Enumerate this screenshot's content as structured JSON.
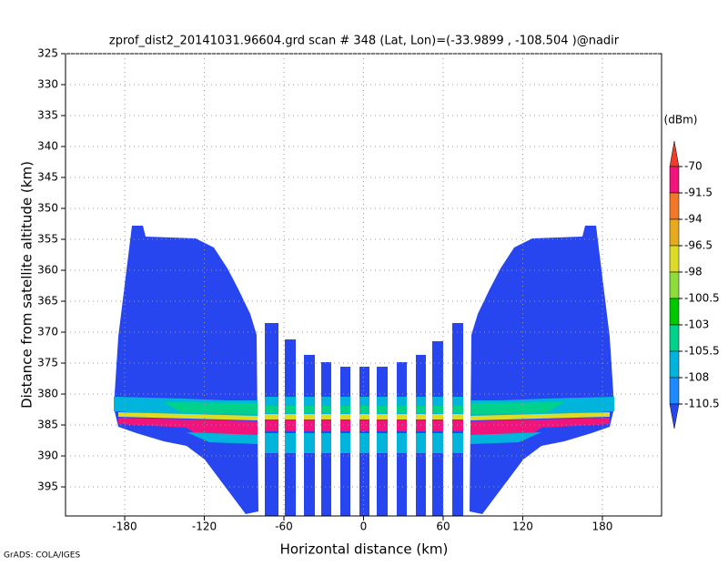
{
  "chart_data": {
    "type": "heatmap",
    "title": "zprof_dist2_20141031.96604.grd  scan # 348  (Lat, Lon)=(-33.9899 , -108.504 )@nadir",
    "x_label": "Horizontal distance (km)",
    "y_label": "Distance from satellite altitude (km)",
    "footer": "GrADS: COLA/IGES",
    "xlim": [
      -224.6,
      224.6
    ],
    "xticks": [
      -180,
      -120,
      -60,
      0,
      60,
      120,
      180
    ],
    "ylim": [
      325,
      399.7
    ],
    "yticks": [
      325,
      330,
      335,
      340,
      345,
      350,
      355,
      360,
      365,
      370,
      375,
      380,
      385,
      390,
      395
    ],
    "y_reversed": true,
    "grid": true,
    "colorbar": {
      "unit": "(dBm)",
      "levels": [
        -70,
        -91.5,
        -94,
        -96.5,
        -98,
        -100.5,
        -103,
        -105.5,
        -108,
        -110.5
      ],
      "colors": [
        "#f03c28",
        "#f0147c",
        "#f07828",
        "#e6aa1e",
        "#dcdc28",
        "#8cdc3c",
        "#00c800",
        "#00d28c",
        "#00b4dc",
        "#1e8cff",
        "#2846f0"
      ]
    }
  }
}
